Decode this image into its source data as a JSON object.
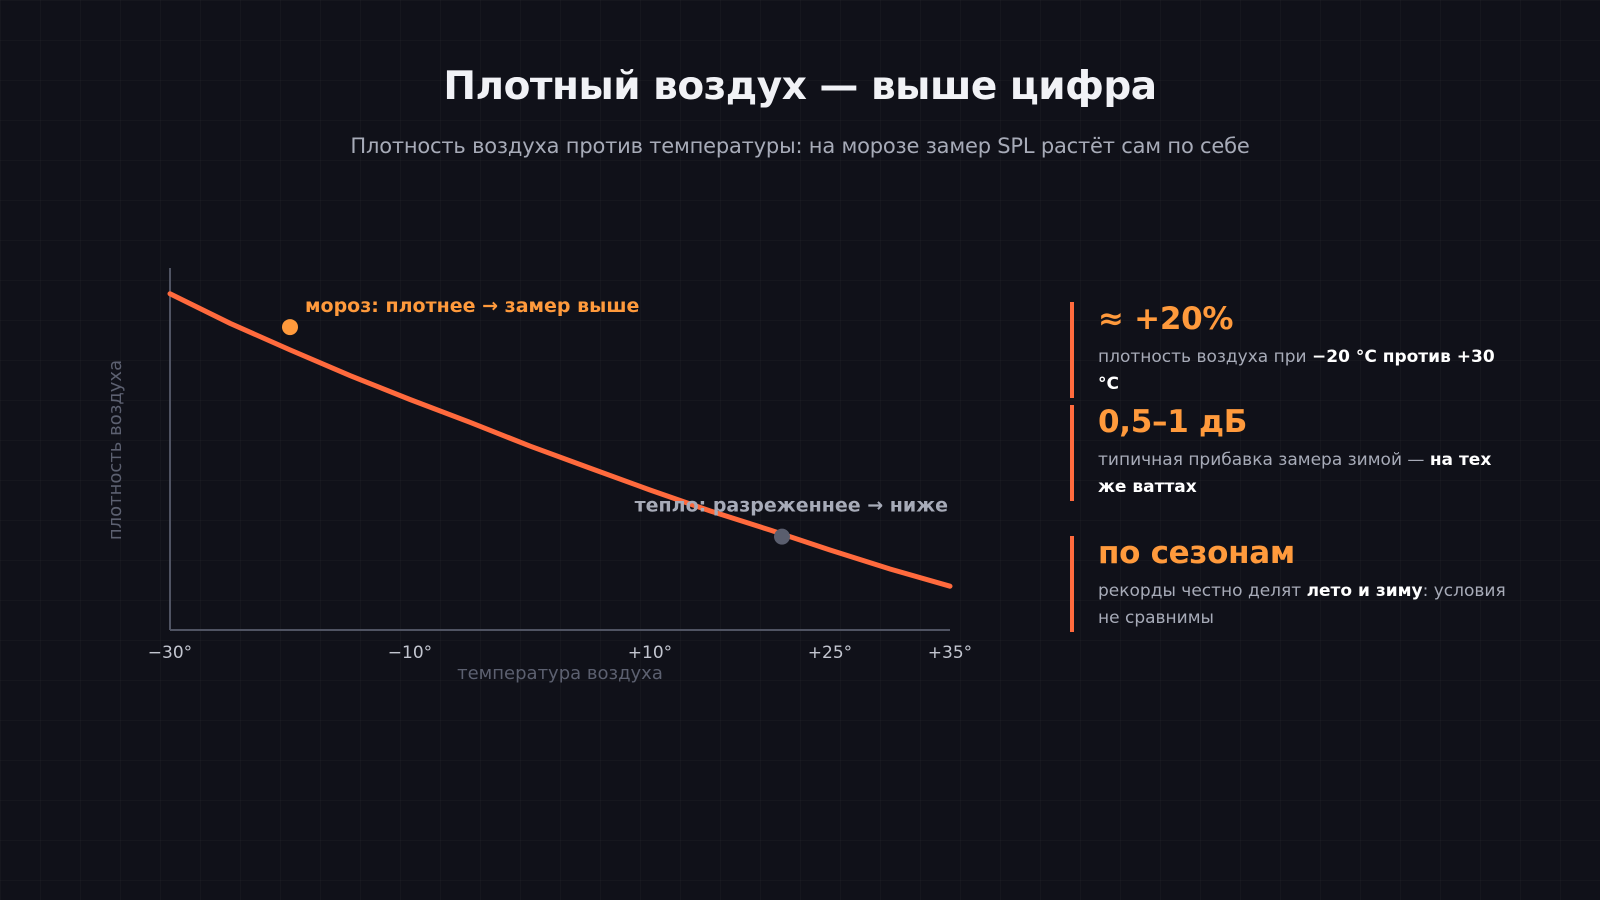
{
  "title": "Плотный воздух — выше цифра",
  "subtitle": "Плотность воздуха против температуры: на морозе замер SPL растёт сам по себе",
  "chart_data": {
    "type": "line",
    "xlabel": "температура воздуха",
    "ylabel": "плотность воздуха",
    "x_ticks": [
      "−30°",
      "−10°",
      "+10°",
      "+25°",
      "+35°"
    ],
    "x_tick_values": [
      -30,
      -10,
      10,
      25,
      35
    ],
    "xlim": [
      -30,
      35
    ],
    "ylim": [
      1.1,
      1.48
    ],
    "series": [
      {
        "x": [
          -30,
          -25,
          -20,
          -15,
          -10,
          -5,
          0,
          5,
          10,
          15,
          20,
          25,
          30,
          35
        ],
        "values": [
          1.453,
          1.422,
          1.394,
          1.367,
          1.342,
          1.318,
          1.293,
          1.27,
          1.247,
          1.225,
          1.205,
          1.184,
          1.164,
          1.146
        ],
        "color": "#ff6a3d"
      }
    ],
    "annotations": [
      {
        "text": "мороз: плотнее → замер выше",
        "x": -20,
        "y": 1.418,
        "color": "#ff9a3c"
      },
      {
        "text": "тепло: разреженнее → ниже",
        "x": 21,
        "y": 1.198,
        "color": "#5a5e6e"
      }
    ]
  },
  "stats": [
    {
      "value": "≈ +20%",
      "desc_plain": "плотность воздуха при ",
      "desc_bold": "−20 °C против +30 °C",
      "desc_tail": ""
    },
    {
      "value": "0,5–1 дБ",
      "desc_plain": "типичная прибавка замера зимой — ",
      "desc_bold": "на тех же ваттах",
      "desc_tail": ""
    },
    {
      "value": "по сезонам",
      "desc_plain": "рекорды честно делят ",
      "desc_bold": "лето и зиму",
      "desc_tail": ": условия не сравнимы"
    }
  ],
  "colors": {
    "background": "#101119",
    "accent": "#ff6a3d",
    "highlight": "#ff9a3c",
    "muted": "#a7abb8"
  }
}
